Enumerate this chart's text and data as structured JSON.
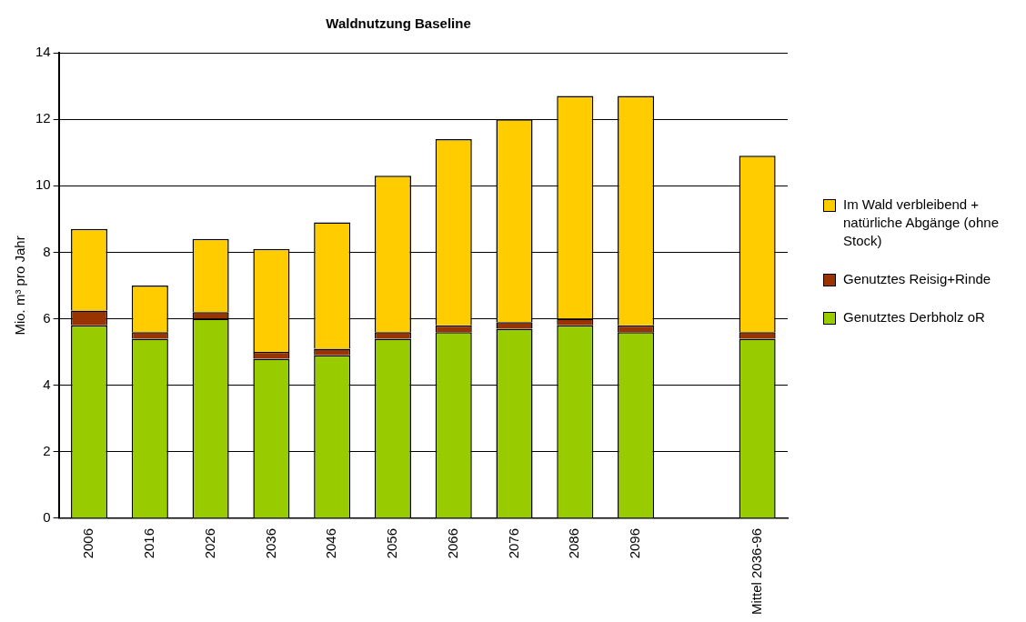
{
  "chart_data": {
    "type": "bar",
    "title": "Waldnutzung Baseline",
    "ylabel": "Mio. m³ pro Jahr",
    "categories": [
      "2006",
      "2016",
      "2026",
      "2036",
      "2046",
      "2056",
      "2066",
      "2076",
      "2086",
      "2096",
      null,
      "Mittel 2036-96"
    ],
    "stacked": true,
    "series": [
      {
        "name": "Genutztes Derbholz oR",
        "color": "#99cc00",
        "values": [
          5.8,
          5.4,
          6.0,
          4.8,
          4.9,
          5.4,
          5.6,
          5.7,
          5.8,
          5.6,
          null,
          5.4
        ]
      },
      {
        "name": "Genutztes Reisig+Rinde",
        "color": "#993300",
        "values": [
          0.45,
          0.2,
          0.2,
          0.2,
          0.2,
          0.2,
          0.2,
          0.2,
          0.2,
          0.2,
          null,
          0.2
        ]
      },
      {
        "name": "Im Wald verbleibend + natürliche Abgänge (ohne Stock)",
        "color": "#ffcc00",
        "values": [
          2.45,
          1.4,
          2.2,
          3.1,
          3.8,
          4.7,
          5.6,
          6.1,
          6.7,
          6.9,
          null,
          5.3
        ]
      }
    ],
    "ylim": [
      0,
      14
    ],
    "yticks": [
      0,
      2,
      4,
      6,
      8,
      10,
      12,
      14
    ],
    "grid": "y",
    "legend": "right"
  }
}
